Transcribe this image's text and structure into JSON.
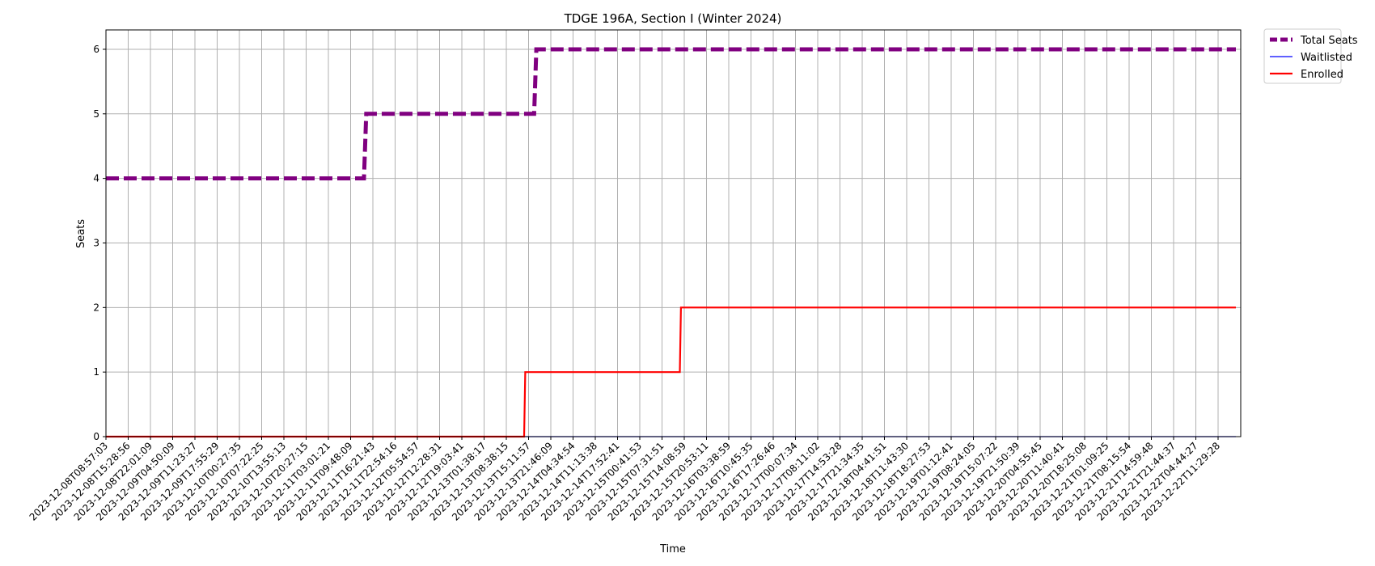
{
  "chart_data": {
    "type": "line",
    "title": "TDGE 196A, Section I (Winter 2024)",
    "xlabel": "Time",
    "ylabel": "Seats",
    "ylim": [
      0,
      6.3
    ],
    "yticks": [
      0,
      1,
      2,
      3,
      4,
      5,
      6
    ],
    "grid": true,
    "legend_position": "outside-top-right",
    "x_ticks": [
      "2023-12-08T08:57:03",
      "2023-12-08T15:28:56",
      "2023-12-08T22:01:09",
      "2023-12-09T04:50:09",
      "2023-12-09T11:23:27",
      "2023-12-09T17:55:29",
      "2023-12-10T00:27:35",
      "2023-12-10T07:22:25",
      "2023-12-10T13:55:13",
      "2023-12-10T20:27:15",
      "2023-12-11T03:01:21",
      "2023-12-11T09:48:09",
      "2023-12-11T16:21:43",
      "2023-12-11T22:54:16",
      "2023-12-12T05:54:57",
      "2023-12-12T12:28:31",
      "2023-12-12T19:03:41",
      "2023-12-13T01:38:17",
      "2023-12-13T08:38:15",
      "2023-12-13T15:11:57",
      "2023-12-13T21:46:09",
      "2023-12-14T04:34:54",
      "2023-12-14T11:13:38",
      "2023-12-14T17:52:41",
      "2023-12-15T00:41:53",
      "2023-12-15T07:31:51",
      "2023-12-15T14:08:59",
      "2023-12-15T20:53:11",
      "2023-12-16T03:38:59",
      "2023-12-16T10:45:35",
      "2023-12-16T17:26:46",
      "2023-12-17T00:07:34",
      "2023-12-17T08:11:02",
      "2023-12-17T14:53:28",
      "2023-12-17T21:34:35",
      "2023-12-18T04:41:51",
      "2023-12-18T11:43:30",
      "2023-12-18T18:27:53",
      "2023-12-19T01:12:41",
      "2023-12-19T08:24:05",
      "2023-12-19T15:07:22",
      "2023-12-19T21:50:39",
      "2023-12-20T04:55:45",
      "2023-12-20T11:40:41",
      "2023-12-20T18:25:08",
      "2023-12-21T01:09:25",
      "2023-12-21T08:15:54",
      "2023-12-21T14:59:48",
      "2023-12-21T21:44:37",
      "2023-12-22T04:44:27",
      "2023-12-22T11:29:28"
    ],
    "series": [
      {
        "name": "Total Seats",
        "color": "#800080",
        "style": "dashed",
        "points": [
          [
            0,
            4
          ],
          [
            11.6,
            4
          ],
          [
            11.7,
            5
          ],
          [
            19.25,
            5
          ],
          [
            19.35,
            6
          ],
          [
            50.8,
            6
          ]
        ]
      },
      {
        "name": "Waitlisted",
        "color": "#0000ff",
        "style": "solid-thin",
        "points": [
          [
            0,
            0
          ],
          [
            50.8,
            0
          ]
        ]
      },
      {
        "name": "Enrolled",
        "color": "#ff0000",
        "style": "solid",
        "points": [
          [
            0,
            0
          ],
          [
            18.8,
            0
          ],
          [
            18.85,
            1
          ],
          [
            25.8,
            1
          ],
          [
            25.85,
            2
          ],
          [
            50.8,
            2
          ]
        ]
      }
    ]
  }
}
